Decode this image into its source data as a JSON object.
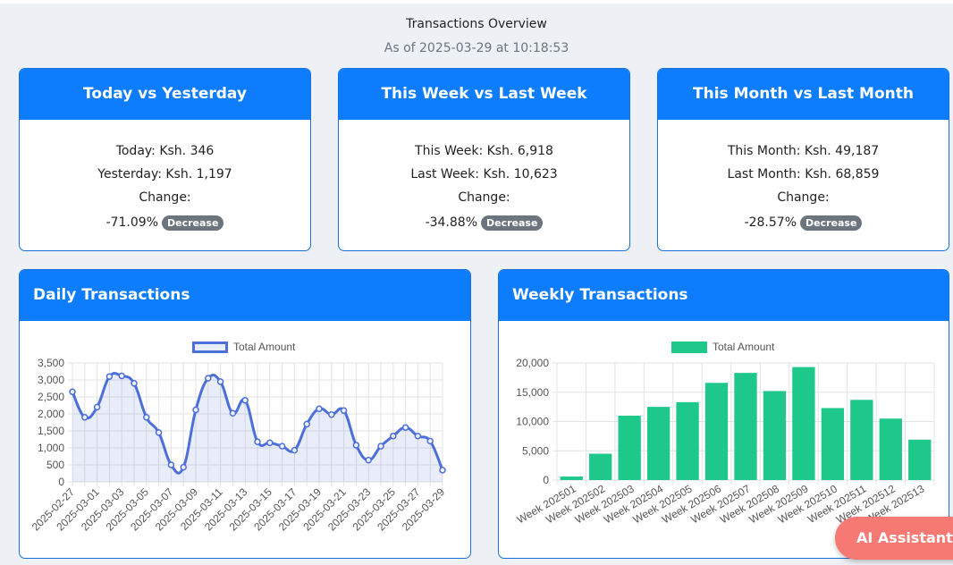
{
  "header": {
    "title": "Transactions Overview",
    "subtitle": "As of 2025-03-29 at 10:18:53"
  },
  "comparisons": [
    {
      "title": "Today vs Yesterday",
      "current": "Today: Ksh. 346",
      "previous": "Yesterday: Ksh. 1,197",
      "change_label": "Change:",
      "change_value": "-71.09%",
      "badge": "Decrease"
    },
    {
      "title": "This Week vs Last Week",
      "current": "This Week: Ksh. 6,918",
      "previous": "Last Week: Ksh. 10,623",
      "change_label": "Change:",
      "change_value": "-34.88%",
      "badge": "Decrease"
    },
    {
      "title": "This Month vs Last Month",
      "current": "This Month: Ksh. 49,187",
      "previous": "Last Month: Ksh. 68,859",
      "change_label": "Change:",
      "change_value": "-28.57%",
      "badge": "Decrease"
    }
  ],
  "daily": {
    "title": "Daily Transactions"
  },
  "weekly": {
    "title": "Weekly Transactions"
  },
  "ai_button": "AI Assistant",
  "colors": {
    "accent": "#0d7dfd",
    "line": "#4c6fd8",
    "bar": "#1ec78a",
    "badge": "#6c757d",
    "ai_button": "#f67a73"
  },
  "chart_data": [
    {
      "type": "line",
      "title": "",
      "xlabel": "",
      "ylabel": "",
      "legend": "top",
      "grid": true,
      "ylim": [
        0,
        3500
      ],
      "yticks": [
        "0",
        "500",
        "1,000",
        "1,500",
        "2,000",
        "2,500",
        "3,000",
        "3,500"
      ],
      "ytick_values": [
        0,
        500,
        1000,
        1500,
        2000,
        2500,
        3000,
        3500
      ],
      "x": [
        "2025-02-27",
        "2025-02-28",
        "2025-03-01",
        "2025-03-02",
        "2025-03-03",
        "2025-03-04",
        "2025-03-05",
        "2025-03-06",
        "2025-03-07",
        "2025-03-08",
        "2025-03-09",
        "2025-03-10",
        "2025-03-11",
        "2025-03-12",
        "2025-03-13",
        "2025-03-14",
        "2025-03-15",
        "2025-03-16",
        "2025-03-17",
        "2025-03-18",
        "2025-03-19",
        "2025-03-20",
        "2025-03-21",
        "2025-03-22",
        "2025-03-23",
        "2025-03-24",
        "2025-03-25",
        "2025-03-26",
        "2025-03-27",
        "2025-03-28",
        "2025-03-29"
      ],
      "xticks": [
        "2025-02-27",
        "2025-03-01",
        "2025-03-03",
        "2025-03-05",
        "2025-03-07",
        "2025-03-09",
        "2025-03-11",
        "2025-03-13",
        "2025-03-15",
        "2025-03-17",
        "2025-03-19",
        "2025-03-21",
        "2025-03-23",
        "2025-03-25",
        "2025-03-27",
        "2025-03-29"
      ],
      "series": [
        {
          "name": "Total Amount",
          "values": [
            2650,
            1900,
            2200,
            3100,
            3120,
            2900,
            1900,
            1450,
            500,
            430,
            2120,
            3050,
            2950,
            2020,
            2400,
            1180,
            1150,
            1050,
            930,
            1700,
            2150,
            1980,
            2100,
            1080,
            640,
            1050,
            1350,
            1600,
            1350,
            1200,
            346
          ]
        }
      ]
    },
    {
      "type": "bar",
      "title": "",
      "xlabel": "",
      "ylabel": "",
      "legend": "top",
      "grid": true,
      "ylim": [
        0,
        20000
      ],
      "yticks": [
        "0",
        "5,000",
        "10,000",
        "15,000",
        "20,000"
      ],
      "ytick_values": [
        0,
        5000,
        10000,
        15000,
        20000
      ],
      "categories": [
        "Week 202501",
        "Week 202502",
        "Week 202503",
        "Week 202504",
        "Week 202505",
        "Week 202506",
        "Week 202507",
        "Week 202508",
        "Week 202509",
        "Week 202510",
        "Week 202511",
        "Week 202512",
        "Week 202513"
      ],
      "series": [
        {
          "name": "Total Amount",
          "values": [
            600,
            4500,
            11000,
            12500,
            13300,
            16600,
            18300,
            15200,
            19300,
            12300,
            13700,
            10500,
            6900
          ]
        }
      ]
    }
  ]
}
